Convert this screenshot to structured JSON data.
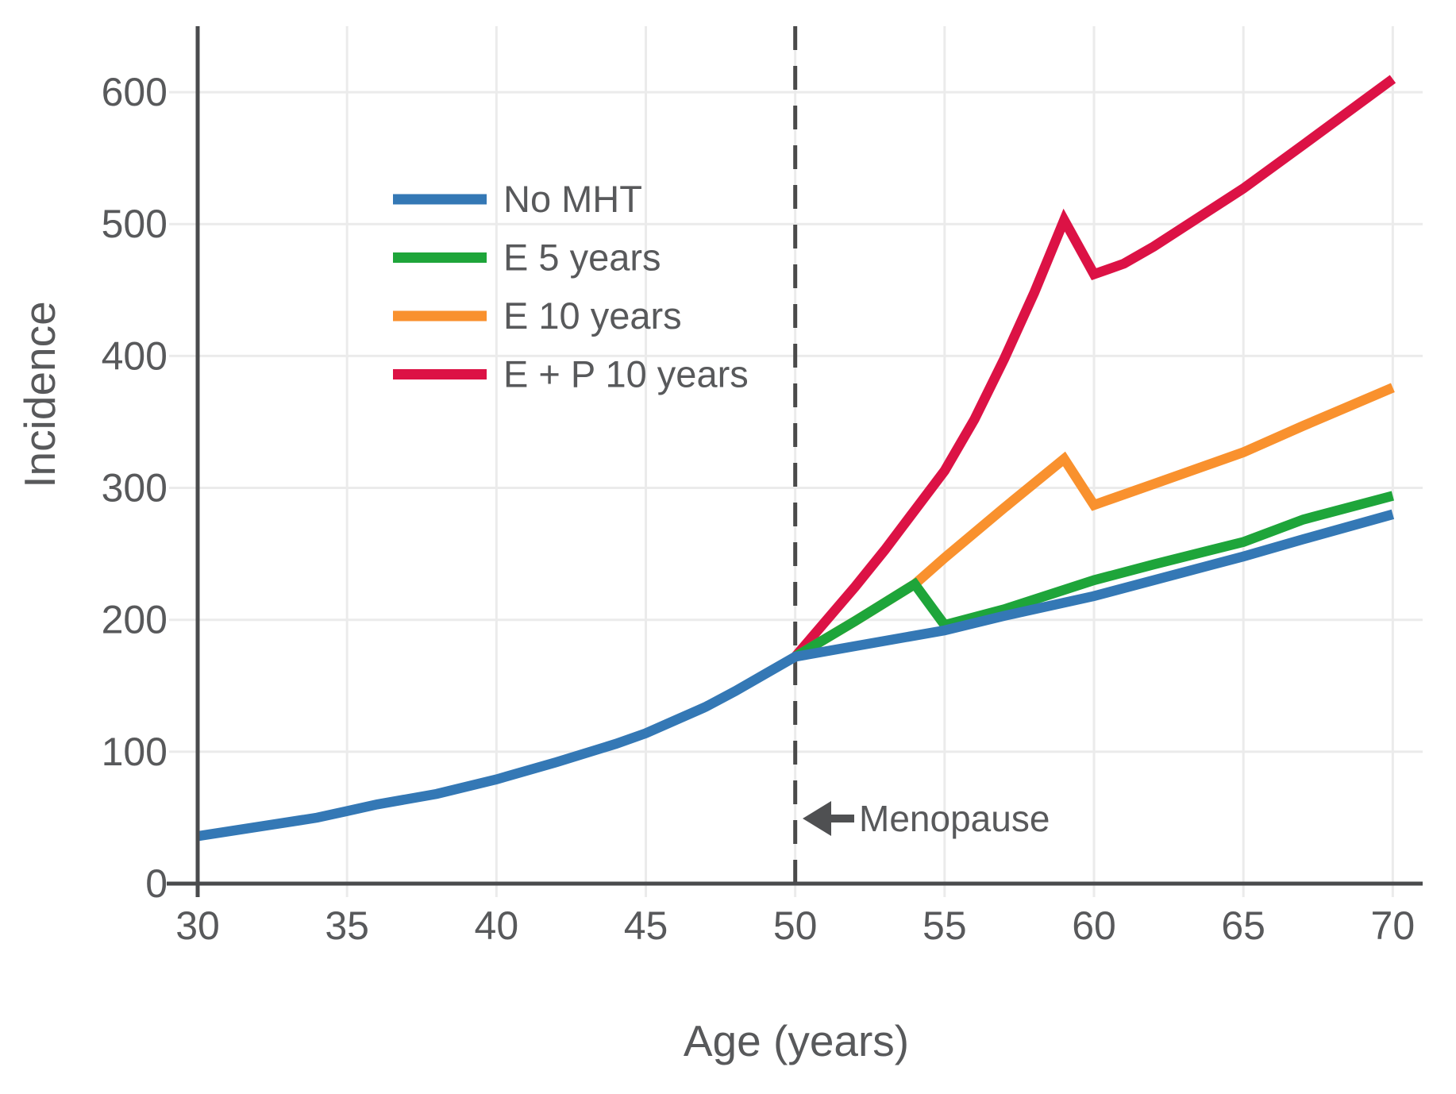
{
  "chart_data": {
    "type": "line",
    "title": "",
    "xlabel": "Age (years)",
    "ylabel": "Incidence",
    "x_ticks": [
      30,
      35,
      40,
      45,
      50,
      55,
      60,
      65,
      70
    ],
    "y_ticks": [
      0,
      100,
      200,
      300,
      400,
      500,
      600
    ],
    "xlim": [
      30,
      71
    ],
    "ylim": [
      0,
      650
    ],
    "grid": true,
    "legend_position": "upper-left-inside",
    "menopause_line_x": 50,
    "annotation": {
      "text": "Menopause",
      "points_to_x": 50,
      "arrow_direction": "left"
    },
    "series": [
      {
        "name": "No MHT",
        "color": "#3478b5",
        "x": [
          30,
          32,
          34,
          35,
          36,
          38,
          40,
          42,
          44,
          45,
          46,
          47,
          48,
          49,
          50,
          52,
          55,
          57,
          60,
          62,
          65,
          67,
          70
        ],
        "y": [
          36,
          43,
          50,
          55,
          60,
          68,
          79,
          92,
          106,
          114,
          124,
          134,
          146,
          159,
          172,
          180,
          192,
          203,
          218,
          230,
          248,
          261,
          280
        ]
      },
      {
        "name": "E 5 years",
        "color": "#1ea53a",
        "x": [
          50,
          52,
          54,
          55,
          57,
          60,
          62,
          65,
          67,
          70
        ],
        "y": [
          172,
          199,
          227,
          196,
          208,
          230,
          242,
          259,
          276,
          294
        ]
      },
      {
        "name": "E 10 years",
        "color": "#f9912e",
        "x": [
          50,
          52,
          54,
          55,
          57,
          59,
          60,
          62,
          65,
          67,
          70
        ],
        "y": [
          172,
          199,
          227,
          247,
          285,
          322,
          287,
          303,
          327,
          347,
          376
        ]
      },
      {
        "name": "E + P 10 years",
        "color": "#dc1245",
        "x": [
          50,
          52,
          53,
          55,
          56,
          57,
          58,
          59,
          60,
          61,
          62,
          65,
          67,
          70
        ],
        "y": [
          172,
          225,
          253,
          313,
          352,
          398,
          448,
          503,
          462,
          470,
          483,
          527,
          560,
          610
        ]
      }
    ]
  },
  "styles": {
    "background": "#ffffff",
    "axis_color": "#4a4b4d",
    "text_color": "#58595b",
    "grid_color": "#ebebeb",
    "dashed_line_color": "#4a4a4a",
    "arrow_color": "#4f5052"
  }
}
